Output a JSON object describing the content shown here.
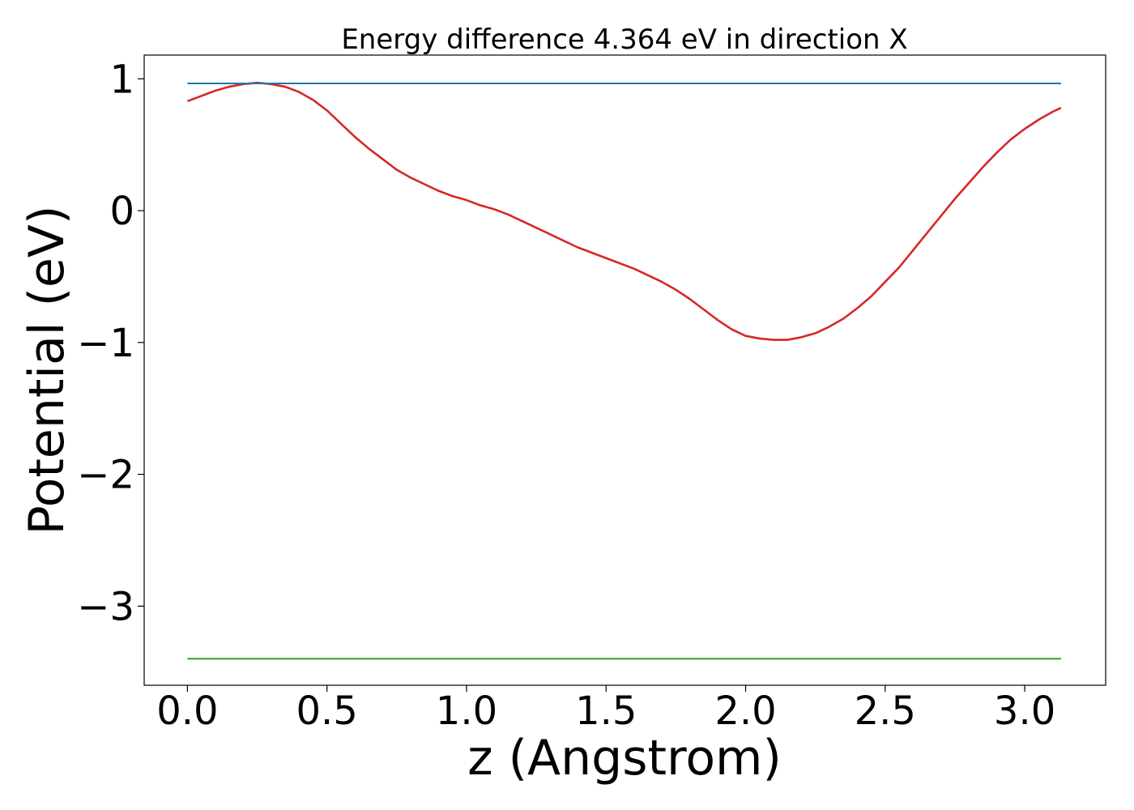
{
  "chart_data": {
    "type": "line",
    "title": "Energy difference 4.364 eV in direction X",
    "xlabel": "z (Angstrom)",
    "ylabel": "Potential (eV)",
    "xlim": [
      -0.155,
      3.29
    ],
    "ylim": [
      -3.6,
      1.18
    ],
    "xticks": [
      0.0,
      0.5,
      1.0,
      1.5,
      2.0,
      2.5,
      3.0
    ],
    "xtick_labels": [
      "0.0",
      "0.5",
      "1.0",
      "1.5",
      "2.0",
      "2.5",
      "3.0"
    ],
    "yticks": [
      1,
      0,
      -1,
      -2,
      -3
    ],
    "ytick_labels": [
      "1",
      "0",
      "−1",
      "−2",
      "−3"
    ],
    "grid": false,
    "series": [
      {
        "color": "#d62728",
        "x": [
          0.0,
          0.05,
          0.1,
          0.15,
          0.2,
          0.25,
          0.3,
          0.35,
          0.4,
          0.45,
          0.5,
          0.55,
          0.6,
          0.65,
          0.7,
          0.75,
          0.8,
          0.85,
          0.9,
          0.95,
          1.0,
          1.05,
          1.1,
          1.15,
          1.2,
          1.25,
          1.3,
          1.35,
          1.4,
          1.45,
          1.5,
          1.55,
          1.6,
          1.65,
          1.7,
          1.75,
          1.8,
          1.85,
          1.9,
          1.95,
          2.0,
          2.05,
          2.1,
          2.13,
          2.15,
          2.2,
          2.25,
          2.3,
          2.35,
          2.4,
          2.45,
          2.5,
          2.55,
          2.6,
          2.65,
          2.7,
          2.75,
          2.8,
          2.85,
          2.9,
          2.95,
          3.0,
          3.05,
          3.1,
          3.13
        ],
        "y": [
          0.83,
          0.87,
          0.91,
          0.94,
          0.96,
          0.97,
          0.96,
          0.94,
          0.9,
          0.84,
          0.76,
          0.66,
          0.56,
          0.47,
          0.39,
          0.31,
          0.25,
          0.2,
          0.15,
          0.11,
          0.08,
          0.04,
          0.01,
          -0.03,
          -0.08,
          -0.13,
          -0.18,
          -0.23,
          -0.28,
          -0.32,
          -0.36,
          -0.4,
          -0.44,
          -0.49,
          -0.54,
          -0.6,
          -0.67,
          -0.75,
          -0.83,
          -0.9,
          -0.95,
          -0.97,
          -0.98,
          -0.98,
          -0.98,
          -0.96,
          -0.93,
          -0.88,
          -0.82,
          -0.74,
          -0.65,
          -0.54,
          -0.43,
          -0.3,
          -0.17,
          -0.04,
          0.09,
          0.21,
          0.33,
          0.44,
          0.54,
          0.62,
          0.69,
          0.75,
          0.78
        ]
      },
      {
        "color": "#1f77b4",
        "x": [
          0.0,
          3.13
        ],
        "y": [
          0.965,
          0.965
        ]
      },
      {
        "color": "#2ca02c",
        "x": [
          0.0,
          3.13
        ],
        "y": [
          -3.399,
          -3.399
        ]
      }
    ]
  }
}
